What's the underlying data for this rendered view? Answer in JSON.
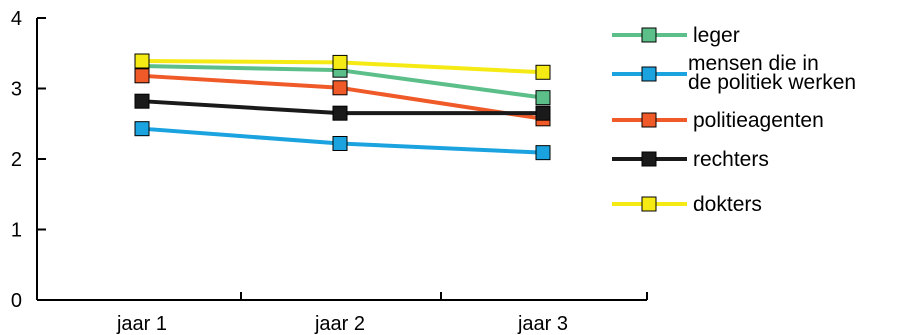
{
  "chart_data": {
    "type": "line",
    "categories": [
      "jaar 1",
      "jaar 2",
      "jaar 3"
    ],
    "ylim": [
      0,
      4
    ],
    "yticks": [
      "0",
      "1",
      "2",
      "3",
      "4"
    ],
    "grid": false,
    "legend_position": "right",
    "series": [
      {
        "name": "leger",
        "color": "#5cbf8a",
        "values": [
          3.32,
          3.26,
          2.87
        ]
      },
      {
        "name": "mensen die in de politiek werken",
        "name_lines": [
          "mensen die in",
          "de politiek werken"
        ],
        "color": "#1ba3e0",
        "values": [
          2.43,
          2.22,
          2.09
        ]
      },
      {
        "name": "politieagenten",
        "color": "#f05a28",
        "values": [
          3.18,
          3.01,
          2.57
        ]
      },
      {
        "name": "rechters",
        "color": "#1a1a1a",
        "values": [
          2.82,
          2.65,
          2.65
        ]
      },
      {
        "name": "dokters",
        "color": "#f5ea14",
        "values": [
          3.39,
          3.37,
          3.23
        ]
      }
    ]
  }
}
